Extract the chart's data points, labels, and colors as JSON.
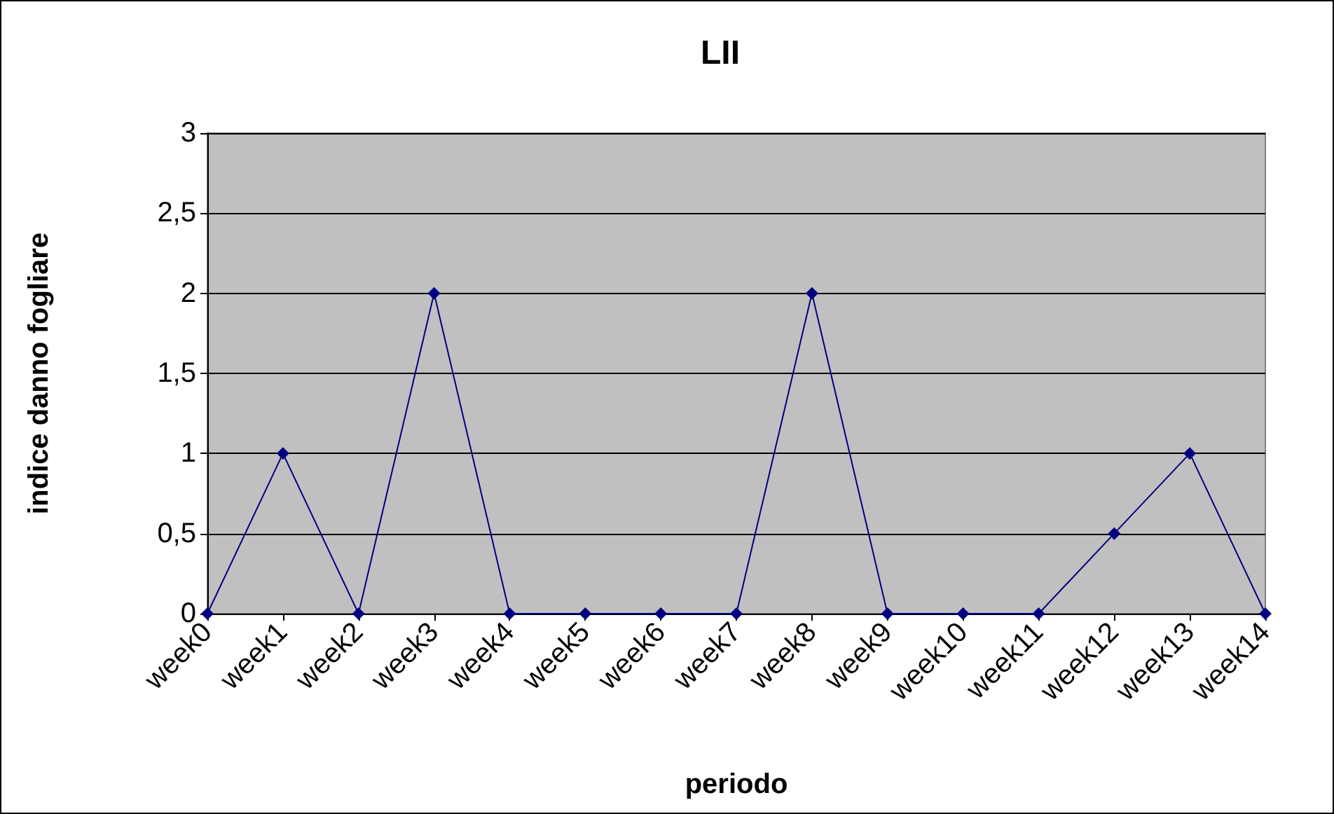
{
  "chart_data": {
    "type": "line",
    "title": "LII",
    "xlabel": "periodo",
    "ylabel": "indice danno fogliare",
    "categories": [
      "week0",
      "week1",
      "week2",
      "week3",
      "week4",
      "week5",
      "week6",
      "week7",
      "week8",
      "week9",
      "week10",
      "week11",
      "week12",
      "week13",
      "week14"
    ],
    "series": [
      {
        "color": "#000080",
        "values": [
          0,
          1,
          0,
          2,
          0,
          0,
          0,
          0,
          2,
          0,
          0,
          0,
          0.5,
          1,
          0
        ]
      }
    ],
    "ylim": [
      0,
      3
    ],
    "yticks": [
      0,
      {
        "value": 0.5,
        "label": "0,5"
      },
      1,
      {
        "value": 1.5,
        "label": "1,5"
      },
      2,
      {
        "value": 2.5,
        "label": "2,5"
      },
      3
    ],
    "grid": "y",
    "marker": "diamond",
    "line_style": "solid"
  }
}
